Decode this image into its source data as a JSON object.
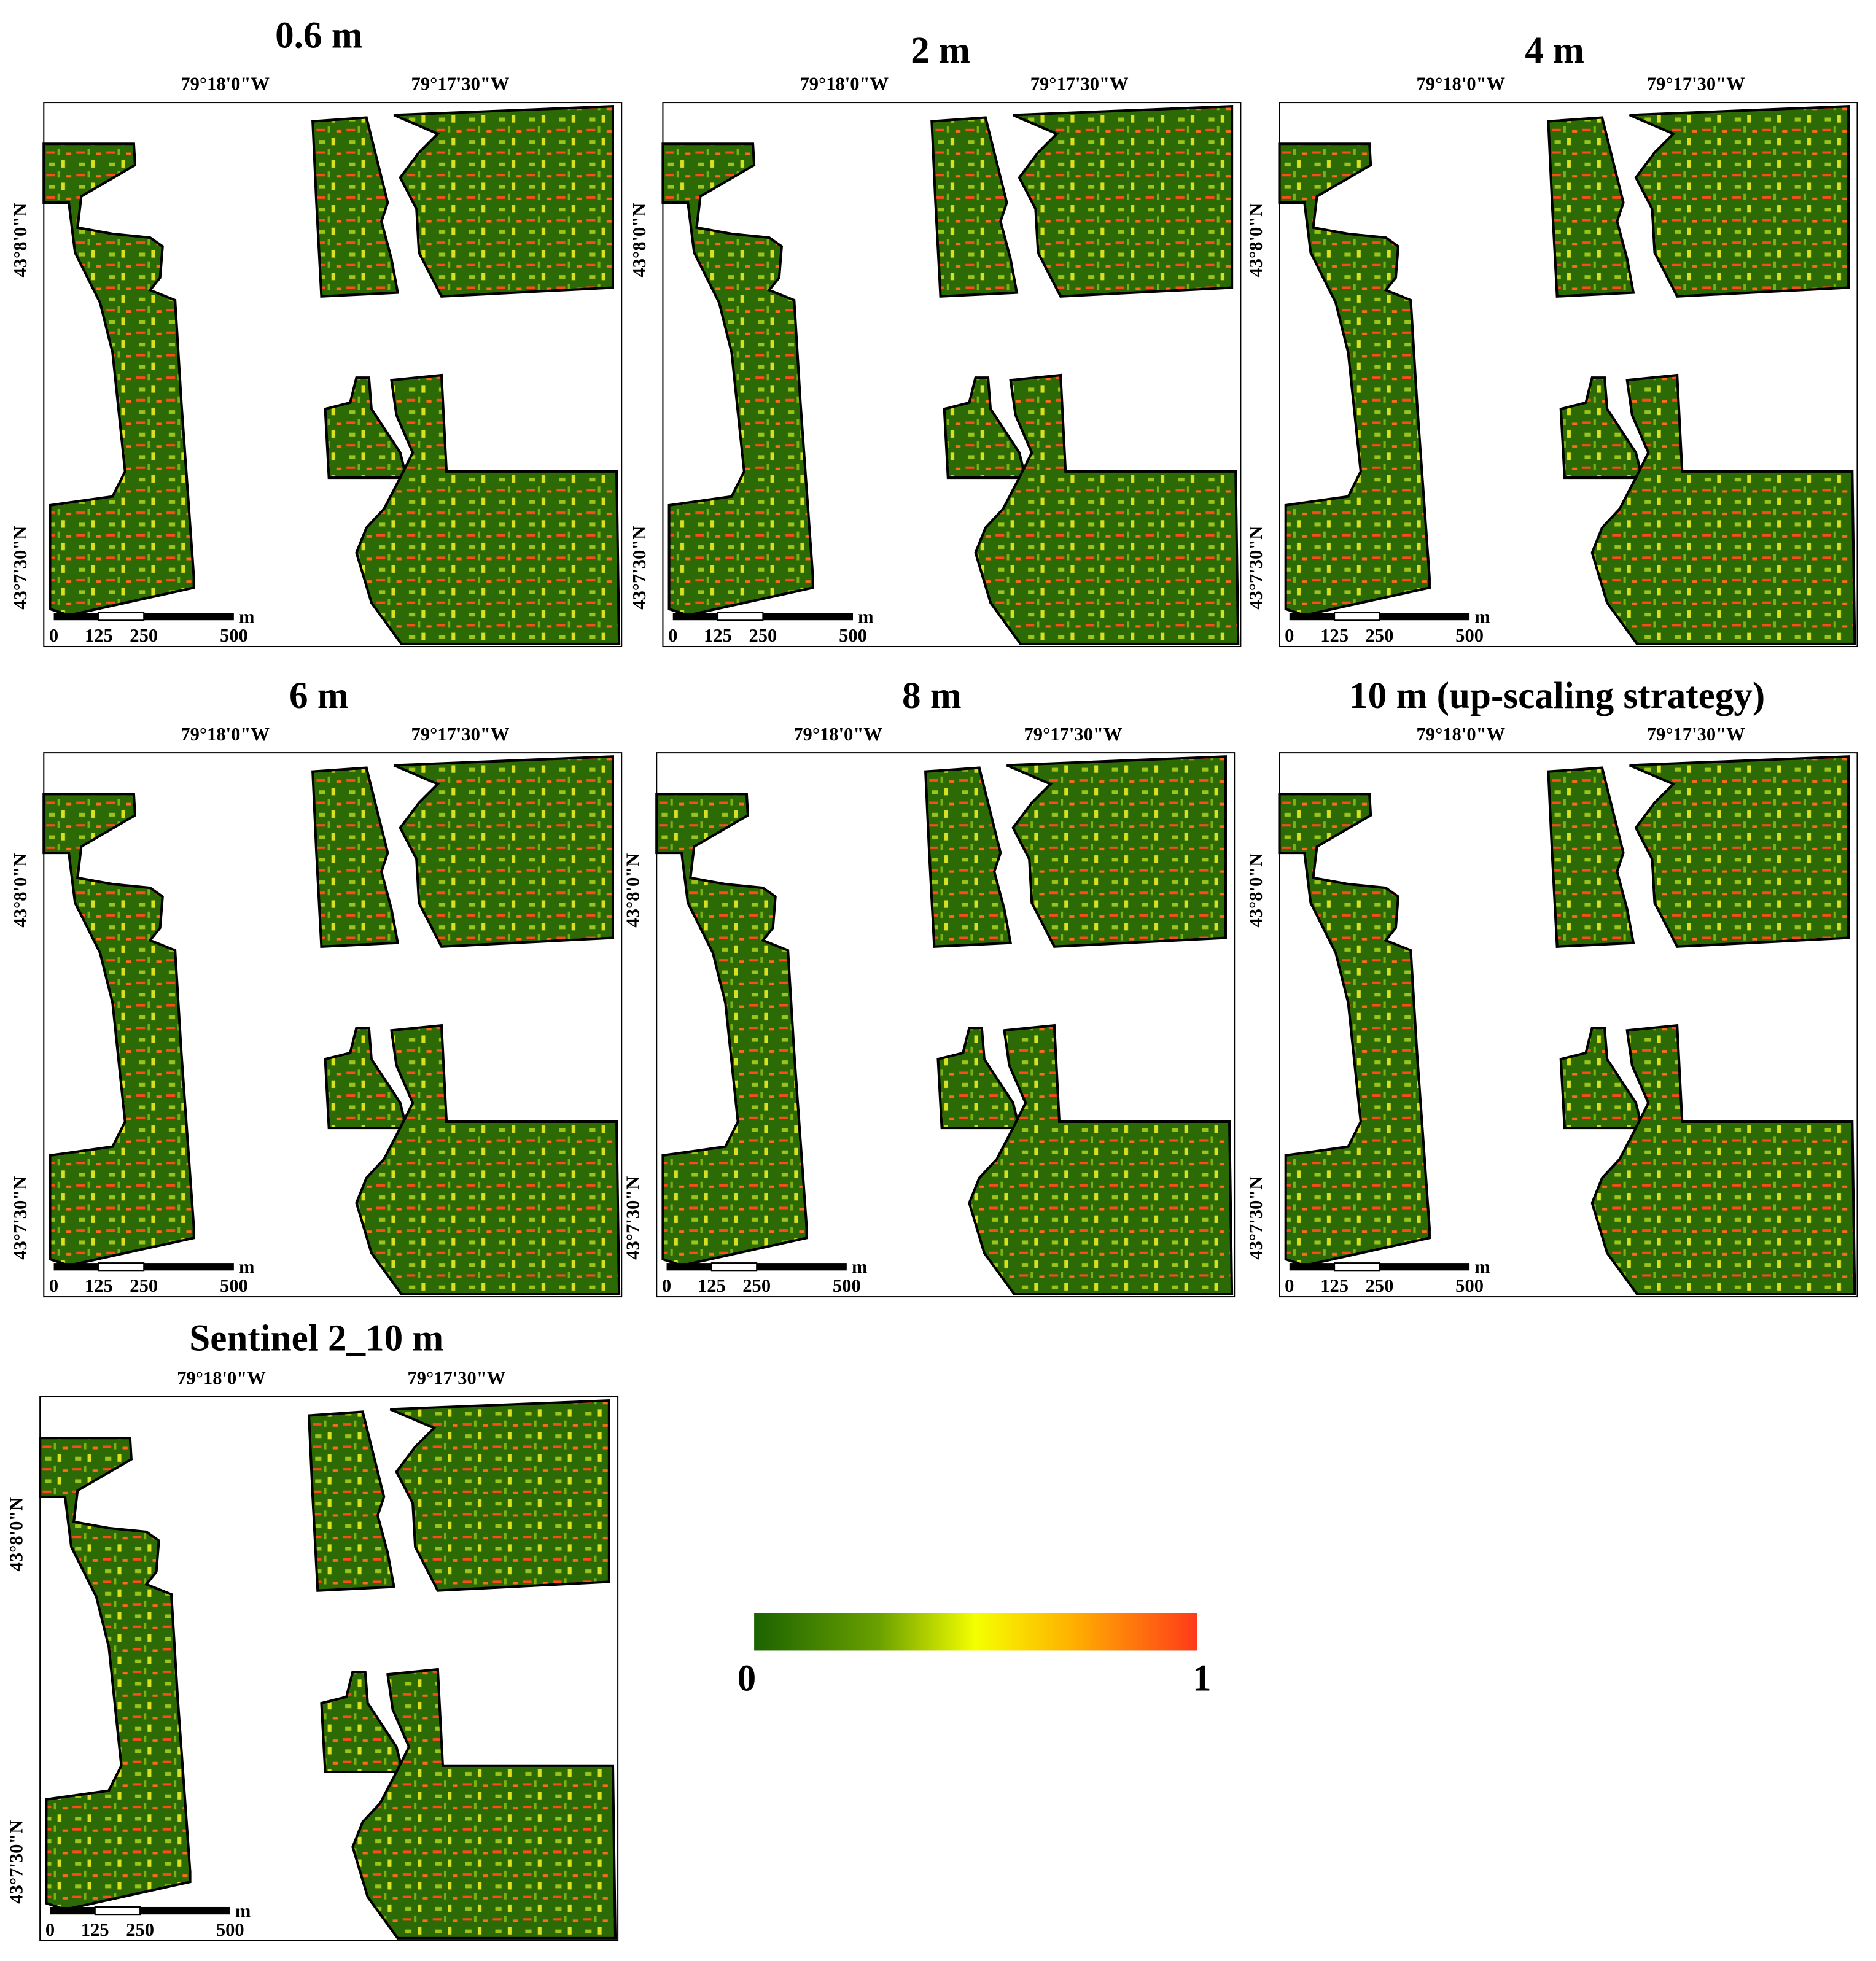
{
  "panels": [
    {
      "title": "0.6 m",
      "lon_labels": [
        "79°18'0\"W",
        "79°17'30\"W"
      ],
      "lat_labels": [
        "43°8'0\"N",
        "43°7'30\"N"
      ],
      "scale_labels": [
        "0",
        "125",
        "250",
        "500"
      ],
      "scale_unit": "m"
    },
    {
      "title": "2 m",
      "lon_labels": [
        "79°18'0\"W",
        "79°17'30\"W"
      ],
      "lat_labels": [
        "43°8'0\"N",
        "43°7'30\"N"
      ],
      "scale_labels": [
        "0",
        "125",
        "250",
        "500"
      ],
      "scale_unit": "m"
    },
    {
      "title": "4 m",
      "lon_labels": [
        "79°18'0\"W",
        "79°17'30\"W"
      ],
      "lat_labels": [
        "43°8'0\"N",
        "43°7'30\"N"
      ],
      "scale_labels": [
        "0",
        "125",
        "250",
        "500"
      ],
      "scale_unit": "m"
    },
    {
      "title": "6 m",
      "lon_labels": [
        "79°18'0\"W",
        "79°17'30\"W"
      ],
      "lat_labels": [
        "43°8'0\"N",
        "43°7'30\"N"
      ],
      "scale_labels": [
        "0",
        "125",
        "250",
        "500"
      ],
      "scale_unit": "m"
    },
    {
      "title": "8 m",
      "lon_labels": [
        "79°18'0\"W",
        "79°17'30\"W"
      ],
      "lat_labels": [
        "43°8'0\"N",
        "43°7'30\"N"
      ],
      "scale_labels": [
        "0",
        "125",
        "250",
        "500"
      ],
      "scale_unit": "m"
    },
    {
      "title": "10 m (up-scaling strategy)",
      "lon_labels": [
        "79°18'0\"W",
        "79°17'30\"W"
      ],
      "lat_labels": [
        "43°8'0\"N",
        "43°7'30\"N"
      ],
      "scale_labels": [
        "0",
        "125",
        "250",
        "500"
      ],
      "scale_unit": "m"
    },
    {
      "title": "Sentinel 2_10 m",
      "lon_labels": [
        "79°18'0\"W",
        "79°17'30\"W"
      ],
      "lat_labels": [
        "43°8'0\"N",
        "43°7'30\"N"
      ],
      "scale_labels": [
        "0",
        "125",
        "250",
        "500"
      ],
      "scale_unit": "m"
    }
  ],
  "colorbar": {
    "min_label": "0",
    "max_label": "1"
  }
}
